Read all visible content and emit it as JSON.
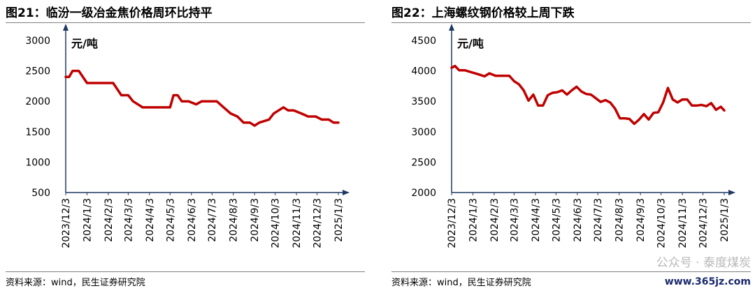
{
  "left": {
    "title": "图21：临汾一级冶金焦价格周环比持平",
    "source": "资料来源：wind，民生证券研究院",
    "chart_data": {
      "type": "line",
      "unit_label": "元/吨",
      "ylim": [
        500,
        3000
      ],
      "yticks": [
        500,
        1000,
        1500,
        2000,
        2500,
        3000
      ],
      "xlim": [
        "2023-12-03",
        "2025-01-03"
      ],
      "xtick_labels": [
        "2023/12/3",
        "2024/1/3",
        "2024/2/3",
        "2024/3/3",
        "2024/4/3",
        "2024/5/3",
        "2024/6/3",
        "2024/7/3",
        "2024/8/3",
        "2024/9/3",
        "2024/10/3",
        "2024/11/3",
        "2024/12/3",
        "2025/1/3"
      ],
      "xtick_dates": [
        "2023-12-03",
        "2024-01-03",
        "2024-02-03",
        "2024-03-03",
        "2024-04-03",
        "2024-05-03",
        "2024-06-03",
        "2024-07-03",
        "2024-08-03",
        "2024-09-03",
        "2024-10-03",
        "2024-11-03",
        "2024-12-03",
        "2025-01-03"
      ],
      "line_color": "#c00000",
      "x": [
        "2023-12-03",
        "2023-12-08",
        "2023-12-13",
        "2023-12-22",
        "2024-01-03",
        "2024-01-14",
        "2024-02-03",
        "2024-02-10",
        "2024-02-22",
        "2024-03-03",
        "2024-03-10",
        "2024-03-24",
        "2024-04-03",
        "2024-04-24",
        "2024-05-03",
        "2024-05-08",
        "2024-05-14",
        "2024-05-20",
        "2024-05-30",
        "2024-06-10",
        "2024-06-18",
        "2024-06-25",
        "2024-07-10",
        "2024-07-20",
        "2024-07-30",
        "2024-08-09",
        "2024-08-18",
        "2024-08-27",
        "2024-09-03",
        "2024-09-10",
        "2024-09-24",
        "2024-10-01",
        "2024-10-08",
        "2024-10-15",
        "2024-10-22",
        "2024-10-30",
        "2024-11-10",
        "2024-11-20",
        "2024-12-01",
        "2024-12-10",
        "2024-12-20",
        "2024-12-27",
        "2025-01-03"
      ],
      "values": [
        2400,
        2400,
        2500,
        2500,
        2300,
        2300,
        2300,
        2300,
        2100,
        2100,
        2000,
        1900,
        1900,
        1900,
        1900,
        2100,
        2100,
        2000,
        2000,
        1950,
        2000,
        2000,
        2000,
        1900,
        1800,
        1750,
        1650,
        1650,
        1600,
        1650,
        1700,
        1800,
        1850,
        1900,
        1850,
        1850,
        1800,
        1750,
        1750,
        1700,
        1700,
        1650,
        1650
      ]
    }
  },
  "right": {
    "title": "图22：上海螺纹钢价格较上周下跌",
    "source": "资料来源：wind，民生证券研究院",
    "chart_data": {
      "type": "line",
      "unit_label": "元/吨",
      "ylim": [
        2000,
        4500
      ],
      "yticks": [
        2000,
        2500,
        3000,
        3500,
        4000,
        4500
      ],
      "xlim": [
        "2023-12-03",
        "2025-01-03"
      ],
      "xtick_labels": [
        "2023/12/3",
        "2024/1/3",
        "2024/2/3",
        "2024/3/3",
        "2024/4/3",
        "2024/5/3",
        "2024/6/3",
        "2024/7/3",
        "2024/8/3",
        "2024/9/3",
        "2024/10/3",
        "2024/11/3",
        "2024/12/3",
        "2025/1/3"
      ],
      "xtick_dates": [
        "2023-12-03",
        "2024-01-03",
        "2024-02-03",
        "2024-03-03",
        "2024-04-03",
        "2024-05-03",
        "2024-06-03",
        "2024-07-03",
        "2024-08-03",
        "2024-09-03",
        "2024-10-03",
        "2024-11-03",
        "2024-12-03",
        "2025-01-03"
      ],
      "line_color": "#c00000",
      "x": [
        "2023-12-03",
        "2023-12-08",
        "2023-12-14",
        "2023-12-22",
        "2024-01-03",
        "2024-01-12",
        "2024-01-20",
        "2024-01-27",
        "2024-02-05",
        "2024-02-15",
        "2024-02-25",
        "2024-03-03",
        "2024-03-10",
        "2024-03-17",
        "2024-03-24",
        "2024-03-31",
        "2024-04-07",
        "2024-04-14",
        "2024-04-21",
        "2024-04-28",
        "2024-05-05",
        "2024-05-12",
        "2024-05-19",
        "2024-05-26",
        "2024-06-02",
        "2024-06-09",
        "2024-06-16",
        "2024-06-23",
        "2024-06-30",
        "2024-07-07",
        "2024-07-14",
        "2024-07-21",
        "2024-07-28",
        "2024-08-04",
        "2024-08-11",
        "2024-08-18",
        "2024-08-25",
        "2024-09-01",
        "2024-09-08",
        "2024-09-15",
        "2024-09-22",
        "2024-09-29",
        "2024-10-06",
        "2024-10-13",
        "2024-10-20",
        "2024-10-27",
        "2024-11-03",
        "2024-11-10",
        "2024-11-17",
        "2024-11-24",
        "2024-12-01",
        "2024-12-08",
        "2024-12-15",
        "2024-12-22",
        "2024-12-29",
        "2025-01-03"
      ],
      "values": [
        4050,
        4080,
        4010,
        4010,
        3970,
        3940,
        3910,
        3960,
        3920,
        3920,
        3920,
        3830,
        3780,
        3680,
        3510,
        3610,
        3430,
        3430,
        3600,
        3640,
        3650,
        3680,
        3610,
        3680,
        3740,
        3660,
        3620,
        3610,
        3550,
        3490,
        3520,
        3480,
        3380,
        3220,
        3220,
        3210,
        3130,
        3200,
        3290,
        3200,
        3310,
        3320,
        3480,
        3720,
        3530,
        3480,
        3530,
        3530,
        3430,
        3430,
        3440,
        3420,
        3470,
        3360,
        3410,
        3350
      ]
    }
  },
  "watermark": {
    "text": "公众号 · 泰度煤炭",
    "site": "www.365jz.com"
  }
}
